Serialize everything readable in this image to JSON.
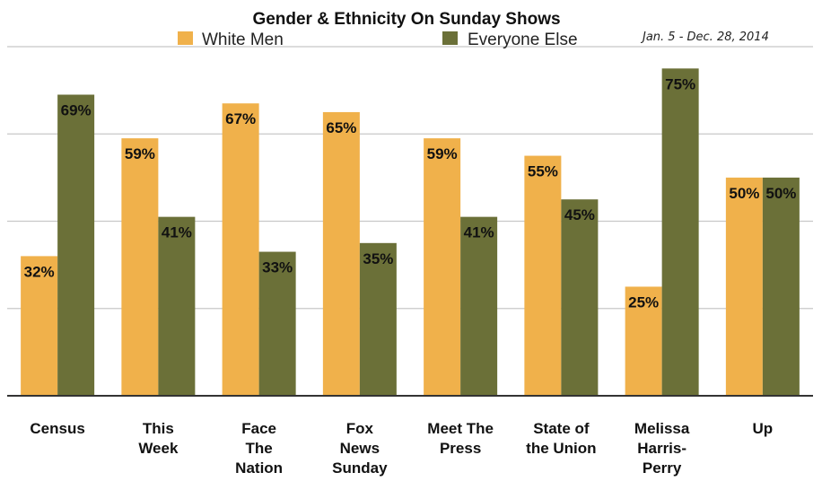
{
  "chart_data": {
    "type": "bar",
    "title": "Gender & Ethnicity On Sunday Shows",
    "subtitle": "Jan. 5 - Dec. 28, 2014",
    "categories": [
      [
        "Census"
      ],
      [
        "This",
        "Week"
      ],
      [
        "Face",
        "The",
        "Nation"
      ],
      [
        "Fox",
        "News",
        "Sunday"
      ],
      [
        "Meet The",
        "Press"
      ],
      [
        "State of",
        "the Union"
      ],
      [
        "Melissa",
        "Harris-",
        "Perry"
      ],
      [
        "Up"
      ]
    ],
    "series": [
      {
        "name": "White Men",
        "color": "#f0b14b",
        "values": [
          32,
          59,
          67,
          65,
          59,
          55,
          25,
          50
        ],
        "labels": [
          "32%",
          "59%",
          "67%",
          "65%",
          "59%",
          "55%",
          "25%",
          "50%"
        ]
      },
      {
        "name": "Everyone Else",
        "color": "#6b7038",
        "values": [
          69,
          41,
          33,
          35,
          41,
          45,
          75,
          50
        ],
        "labels": [
          "69%",
          "41%",
          "33%",
          "35%",
          "41%",
          "45%",
          "75%",
          "50%"
        ]
      }
    ],
    "ylim": [
      0,
      80
    ],
    "gridlines": [
      20,
      40,
      60,
      80
    ],
    "grid": true,
    "legend": "top-center",
    "xlabel": "",
    "ylabel": ""
  }
}
